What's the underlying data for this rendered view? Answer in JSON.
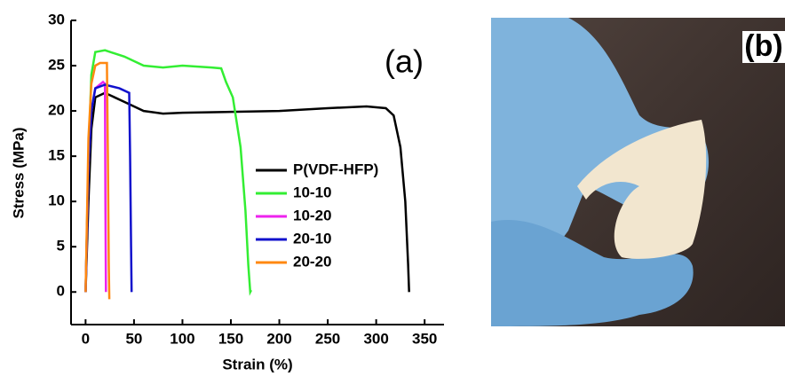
{
  "chart_data": {
    "type": "line",
    "panel_label": "(a)",
    "xlabel": "Strain (%)",
    "ylabel": "Stress (MPa)",
    "xlim": [
      -15,
      370
    ],
    "ylim": [
      -3.6,
      30
    ],
    "xticks": [
      0,
      50,
      100,
      150,
      200,
      250,
      300,
      350
    ],
    "yticks": [
      0,
      5,
      10,
      15,
      20,
      25,
      30
    ],
    "legend": "right",
    "series": [
      {
        "name": "P(VDF-HFP)",
        "color": "#000000",
        "x": [
          0,
          3,
          6,
          10,
          20,
          40,
          60,
          80,
          100,
          150,
          200,
          250,
          290,
          310,
          318,
          325,
          330,
          333,
          334
        ],
        "values": [
          0,
          10,
          18,
          21.5,
          22,
          21,
          20,
          19.7,
          19.8,
          19.9,
          20,
          20.3,
          20.5,
          20.3,
          19.5,
          16,
          10,
          3,
          0
        ]
      },
      {
        "name": "10-10",
        "color": "#33ee33",
        "x": [
          0,
          3,
          6,
          10,
          20,
          40,
          60,
          80,
          100,
          130,
          140,
          145,
          152,
          160,
          165,
          168,
          170,
          171
        ],
        "values": [
          0,
          15,
          24,
          26.5,
          26.7,
          26,
          25,
          24.8,
          25,
          24.8,
          24.7,
          23.2,
          21.5,
          16,
          9,
          3,
          0,
          0.2
        ]
      },
      {
        "name": "10-20",
        "color": "#ee22ee",
        "x": [
          0,
          3,
          6,
          10,
          18,
          20,
          20.5,
          21
        ],
        "values": [
          0,
          14,
          20,
          22.5,
          23.2,
          23,
          10,
          0
        ]
      },
      {
        "name": "20-10",
        "color": "#1111cc",
        "x": [
          0,
          3,
          6,
          10,
          20,
          35,
          45,
          46,
          47,
          47.5
        ],
        "values": [
          0,
          14,
          20,
          22.5,
          22.9,
          22.5,
          22,
          15,
          5,
          0
        ]
      },
      {
        "name": "20-20",
        "color": "#ff8811",
        "x": [
          0,
          3,
          6,
          10,
          15,
          22,
          23,
          24,
          24.5
        ],
        "values": [
          0,
          17,
          23,
          25,
          25.3,
          25.3,
          15,
          3,
          -0.8
        ]
      }
    ]
  },
  "photo": {
    "label": "(b)"
  }
}
